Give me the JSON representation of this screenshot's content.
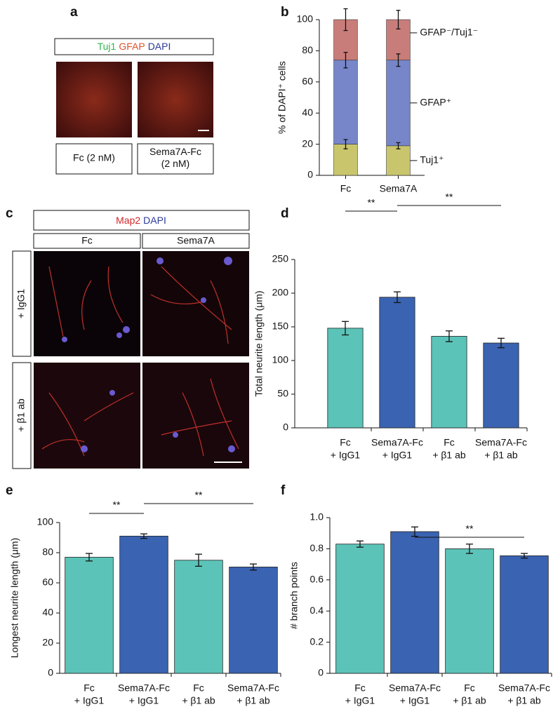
{
  "panel_letters": [
    "a",
    "b",
    "c",
    "d",
    "e",
    "f"
  ],
  "image_panels": {
    "a": {
      "header": [
        {
          "text": "Tuj1",
          "color": "#2fb84a"
        },
        {
          "text": "GFAP",
          "color": "#e0502a"
        },
        {
          "text": "DAPI",
          "color": "#2a3a9a"
        }
      ],
      "labels": [
        [
          "Fc (2 nM)"
        ],
        [
          "Sema7A-Fc",
          "(2 nM)"
        ]
      ]
    },
    "c": {
      "header": [
        {
          "text": "Map2",
          "color": "#d0282a"
        },
        {
          "text": "DAPI",
          "color": "#2a3a9a"
        }
      ],
      "columns": [
        "Fc",
        "Sema7A"
      ],
      "rows": [
        "+ IgG1",
        "+ β1 ab"
      ]
    }
  },
  "chart_data": [
    {
      "type": "stacked_bar",
      "ylabel": "% of DAPI⁺ cells",
      "categories": [
        "Fc",
        "Sema7A"
      ],
      "series": [
        {
          "name": "Tuj1⁺",
          "color": "#c9c56c",
          "values": [
            20,
            19
          ],
          "errors": [
            3,
            2
          ]
        },
        {
          "name": "GFAP⁺",
          "color": "#7686c9",
          "values": [
            54,
            55
          ],
          "errors": [
            5,
            4
          ]
        },
        {
          "name": "GFAP⁻/Tuj1⁻",
          "color": "#c97d7a",
          "values": [
            26,
            26
          ],
          "errors": [
            7,
            6
          ]
        }
      ],
      "ylim": [
        0,
        100
      ],
      "yticks": [
        0,
        20,
        40,
        60,
        80,
        100
      ]
    },
    {
      "type": "bar",
      "ylabel": "Total neurite length (μm)",
      "categories": [
        [
          "Fc",
          "+ IgG1"
        ],
        [
          "Sema7A-Fc",
          "+ IgG1"
        ],
        [
          "Fc",
          "+ β1 ab"
        ],
        [
          "Sema7A-Fc",
          "+ β1 ab"
        ]
      ],
      "values": [
        148,
        194,
        136,
        126
      ],
      "errors": [
        10,
        8,
        8,
        7
      ],
      "colors": [
        "#5cc3b8",
        "#3a63b1",
        "#5cc3b8",
        "#3a63b1"
      ],
      "ylim": [
        0,
        250
      ],
      "yticks": [
        0,
        50,
        100,
        150,
        200,
        250
      ],
      "significance": [
        {
          "between": [
            0,
            1
          ],
          "label": "**"
        },
        {
          "between": [
            1,
            3
          ],
          "label": "**"
        }
      ]
    },
    {
      "type": "bar",
      "ylabel": "Longest neurite length (μm)",
      "categories": [
        [
          "Fc",
          "+ IgG1"
        ],
        [
          "Sema7A-Fc",
          "+ IgG1"
        ],
        [
          "Fc",
          "+ β1 ab"
        ],
        [
          "Sema7A-Fc",
          "+ β1 ab"
        ]
      ],
      "values": [
        77,
        91,
        75,
        70.5
      ],
      "errors": [
        2.5,
        1.5,
        4,
        2
      ],
      "colors": [
        "#5cc3b8",
        "#3a63b1",
        "#5cc3b8",
        "#3a63b1"
      ],
      "ylim": [
        0,
        100
      ],
      "yticks": [
        0,
        20,
        40,
        60,
        80,
        100
      ],
      "significance": [
        {
          "between": [
            0,
            1
          ],
          "label": "**"
        },
        {
          "between": [
            1,
            3
          ],
          "label": "**"
        }
      ]
    },
    {
      "type": "bar",
      "ylabel": "# branch points",
      "categories": [
        [
          "Fc",
          "+ IgG1"
        ],
        [
          "Sema7A-Fc",
          "+ IgG1"
        ],
        [
          "Fc",
          "+ β1 ab"
        ],
        [
          "Sema7A-Fc",
          "+ β1 ab"
        ]
      ],
      "values": [
        0.83,
        0.91,
        0.8,
        0.755
      ],
      "errors": [
        0.02,
        0.03,
        0.03,
        0.015
      ],
      "colors": [
        "#5cc3b8",
        "#3a63b1",
        "#5cc3b8",
        "#3a63b1"
      ],
      "ylim": [
        0,
        1
      ],
      "yticks": [
        0,
        0.2,
        0.4,
        0.6,
        0.8,
        {
          "value": 1,
          "label": "1.0"
        }
      ],
      "significance": [
        {
          "between": [
            1,
            3
          ],
          "label": "**"
        }
      ]
    }
  ]
}
